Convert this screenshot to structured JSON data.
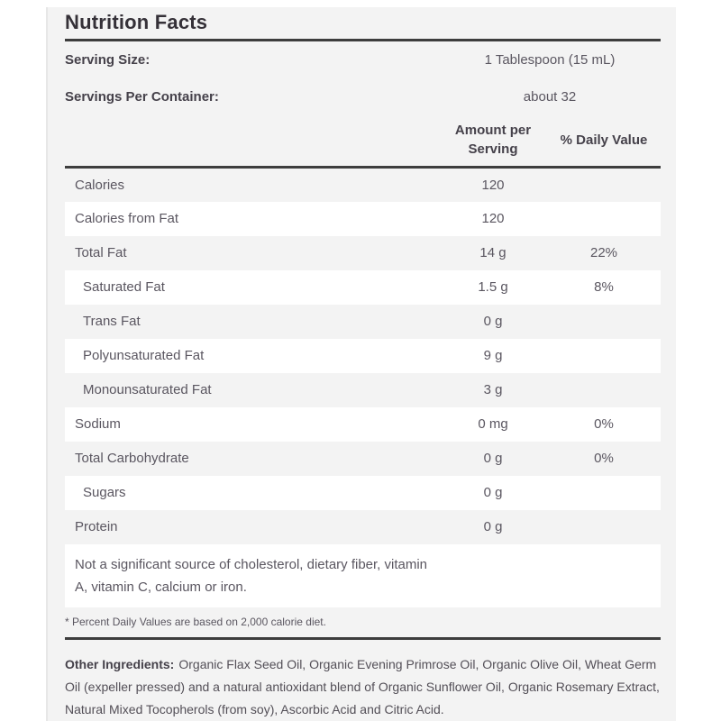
{
  "page": {
    "background": "#ffffff",
    "panel_background": "#f3f3f3",
    "rule_color": "#3d3d3d",
    "body_text_color": "#5a5660",
    "heading_text_color": "#45414a",
    "title_color": "#353138"
  },
  "nutrition": {
    "title": "Nutrition Facts",
    "serving": [
      {
        "label": "Serving Size:",
        "value": "1 Tablespoon (15 mL)"
      },
      {
        "label": "Servings Per Container:",
        "value": "about 32"
      }
    ],
    "columns": {
      "amount": "Amount per Serving",
      "daily_value": "% Daily Value"
    },
    "rows": [
      {
        "name": "Calories",
        "amount": "120",
        "dv": ""
      },
      {
        "name": "Calories from Fat",
        "amount": "120",
        "dv": ""
      },
      {
        "name": "Total Fat",
        "amount": "14 g",
        "dv": "22%"
      },
      {
        "name": "Saturated Fat",
        "amount": "1.5 g",
        "dv": "8%"
      },
      {
        "name": "Trans Fat",
        "amount": "0 g",
        "dv": ""
      },
      {
        "name": "Polyunsaturated Fat",
        "amount": "9 g",
        "dv": ""
      },
      {
        "name": "Monounsaturated Fat",
        "amount": "3 g",
        "dv": ""
      },
      {
        "name": "Sodium",
        "amount": "0 mg",
        "dv": "0%"
      },
      {
        "name": "Total Carbohydrate",
        "amount": "0 g",
        "dv": "0%"
      },
      {
        "name": "Sugars",
        "amount": "0 g",
        "dv": ""
      },
      {
        "name": "Protein",
        "amount": "0 g",
        "dv": ""
      }
    ],
    "note_lines": [
      "Not a significant source of cholesterol, dietary fiber, vitamin",
      "A, vitamin C, calcium or iron."
    ],
    "footnote": "* Percent Daily Values are based on 2,000 calorie diet.",
    "ingredients": {
      "label": "Other Ingredients:",
      "text": "Organic Flax Seed Oil, Organic Evening Primrose Oil, Organic Olive Oil, Wheat Germ Oil (expeller pressed) and a natural antioxidant blend of Organic Sunflower Oil, Organic Rosemary Extract, Natural Mixed Tocopherols (from soy), Ascorbic Acid and Citric Acid."
    }
  }
}
